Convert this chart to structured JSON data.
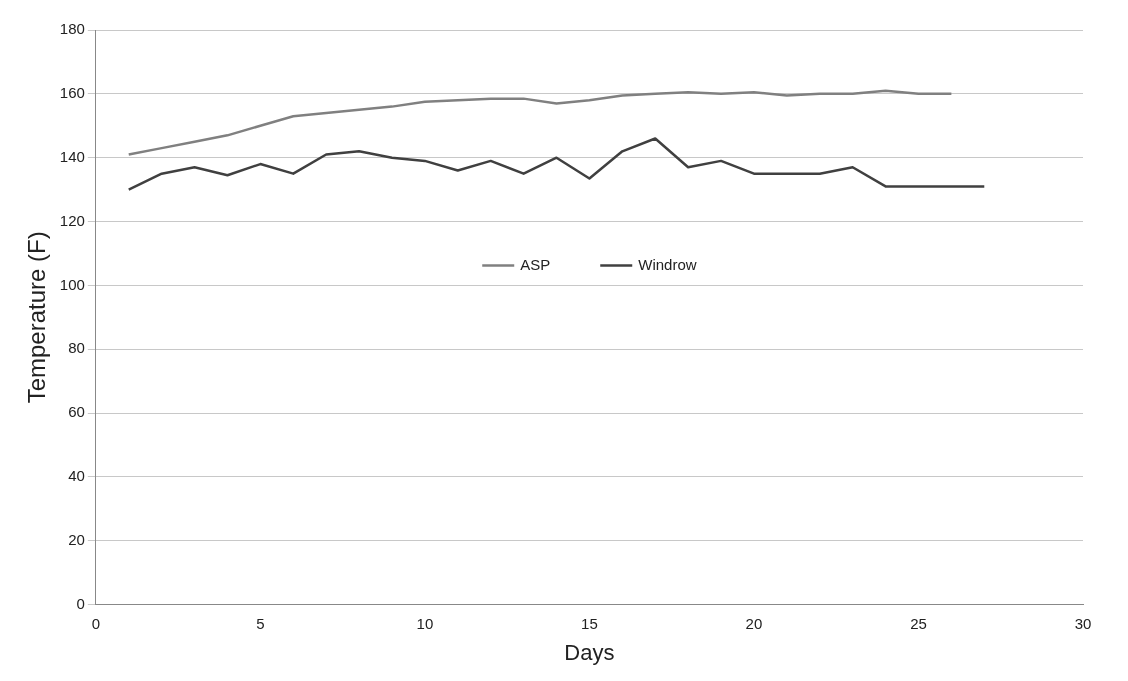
{
  "chart_data": {
    "type": "line",
    "xlabel": "Days",
    "ylabel": "Temperature (F)",
    "xlim": [
      0,
      30
    ],
    "xticks": [
      0,
      5,
      10,
      15,
      20,
      25,
      30
    ],
    "ylim": [
      0,
      180
    ],
    "yticks": [
      0,
      20,
      40,
      60,
      80,
      100,
      120,
      140,
      160,
      180
    ],
    "grid": "y",
    "legend": "center",
    "marker": "none",
    "line_style": "solid",
    "series": [
      {
        "name": "ASP",
        "color": "#808080",
        "x": [
          1,
          2,
          3,
          4,
          5,
          6,
          7,
          8,
          9,
          10,
          11,
          12,
          13,
          14,
          15,
          16,
          17,
          18,
          19,
          20,
          21,
          22,
          23,
          24,
          25,
          26
        ],
        "values": [
          141,
          143,
          145,
          147,
          150,
          153,
          154,
          155,
          156,
          157.5,
          158,
          158.5,
          158.5,
          157,
          158,
          159.5,
          160,
          160.5,
          160,
          160.5,
          159.5,
          160,
          160,
          161,
          160,
          160
        ]
      },
      {
        "name": "Windrow",
        "color": "#404040",
        "x": [
          1,
          2,
          3,
          4,
          5,
          6,
          7,
          8,
          9,
          10,
          11,
          12,
          13,
          14,
          15,
          16,
          17,
          18,
          19,
          20,
          21,
          22,
          23,
          24,
          25,
          26,
          27
        ],
        "values": [
          130,
          135,
          137,
          134.5,
          138,
          135,
          141,
          142,
          140,
          139,
          136,
          139,
          135,
          140,
          133.5,
          142,
          146,
          137,
          139,
          135,
          135,
          135,
          137,
          131,
          131,
          131,
          131
        ]
      }
    ]
  }
}
